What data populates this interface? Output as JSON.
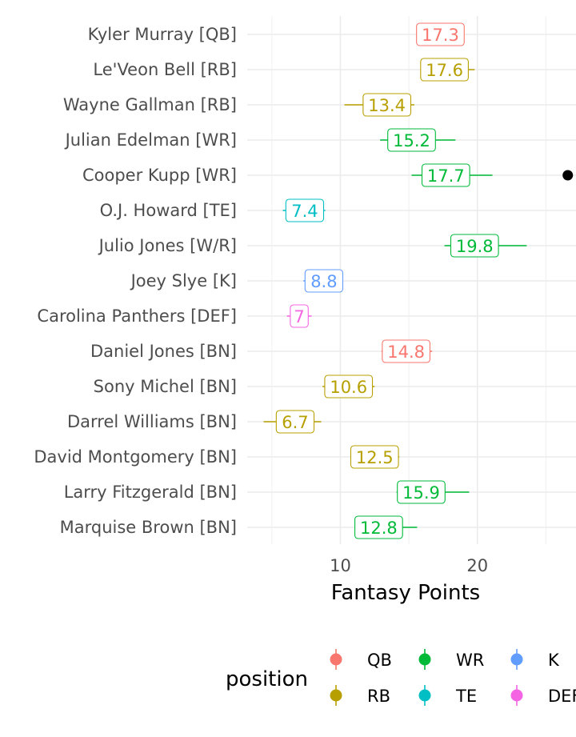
{
  "chart_data": {
    "type": "scatter",
    "xlabel": "Fantasy Points",
    "ylabel": "",
    "xlim": [
      3.2,
      27.2
    ],
    "x_ticks": [
      10,
      20
    ],
    "grid": true,
    "legend": {
      "title": "position",
      "placement": "bottom",
      "entries": [
        {
          "name": "QB",
          "color": "#F8766D"
        },
        {
          "name": "RB",
          "color": "#B79F00"
        },
        {
          "name": "WR",
          "color": "#00BA38"
        },
        {
          "name": "TE",
          "color": "#00BFC4"
        },
        {
          "name": "K",
          "color": "#619CFF"
        },
        {
          "name": "DEF",
          "color": "#F564E3"
        }
      ]
    },
    "players": [
      {
        "name": "Kyler Murray [QB]",
        "position": "QB",
        "projection": 17.3,
        "low": 15.6,
        "high": 19.0
      },
      {
        "name": "Le'Veon Bell [RB]",
        "position": "RB",
        "projection": 17.6,
        "low": 15.9,
        "high": 19.8
      },
      {
        "name": "Wayne Gallman [RB]",
        "position": "RB",
        "projection": 13.4,
        "low": 10.3,
        "high": 15.4
      },
      {
        "name": "Julian Edelman [WR]",
        "position": "WR",
        "projection": 15.2,
        "low": 12.9,
        "high": 18.4
      },
      {
        "name": "Cooper Kupp [WR]",
        "position": "WR",
        "projection": 17.7,
        "low": 15.2,
        "high": 21.1
      },
      {
        "name": "O.J. Howard [TE]",
        "position": "TE",
        "projection": 7.4,
        "low": 5.8,
        "high": 8.9
      },
      {
        "name": "Julio Jones [W/R]",
        "position": "WR",
        "projection": 19.8,
        "low": 17.6,
        "high": 23.6
      },
      {
        "name": "Joey Slye [K]",
        "position": "K",
        "projection": 8.8,
        "low": 7.3,
        "high": 10.1
      },
      {
        "name": "Carolina Panthers [DEF]",
        "position": "DEF",
        "projection": 7,
        "low": 6.1,
        "high": 7.9
      },
      {
        "name": "Daniel Jones [BN]",
        "position": "QB",
        "projection": 14.8,
        "low": 13.0,
        "high": 16.7
      },
      {
        "name": "Sony Michel [BN]",
        "position": "RB",
        "projection": 10.6,
        "low": 8.7,
        "high": 12.5
      },
      {
        "name": "Darrel Williams [BN]",
        "position": "RB",
        "projection": 6.7,
        "low": 4.4,
        "high": 8.6
      },
      {
        "name": "David Montgomery [BN]",
        "position": "RB",
        "projection": 12.5,
        "low": 10.8,
        "high": 14.3
      },
      {
        "name": "Larry Fitzgerald [BN]",
        "position": "WR",
        "projection": 15.9,
        "low": 14.1,
        "high": 19.4
      },
      {
        "name": "Marquise Brown [BN]",
        "position": "WR",
        "projection": 12.8,
        "low": 11.1,
        "high": 15.6
      }
    ],
    "extra_points": [
      {
        "player": "Cooper Kupp [WR]",
        "x": 26.6,
        "color": "#000000"
      }
    ]
  }
}
